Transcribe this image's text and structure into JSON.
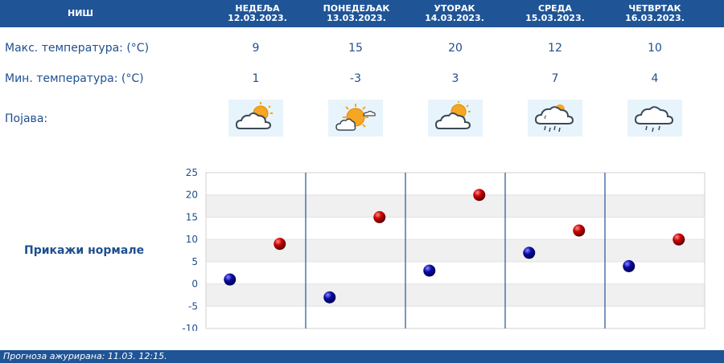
{
  "header": {
    "city": "НИШ",
    "days": [
      {
        "day": "НЕДЕЉА",
        "date": "12.03.2023."
      },
      {
        "day": "ПОНЕДЕЉАК",
        "date": "13.03.2023."
      },
      {
        "day": "УТОРАК",
        "date": "14.03.2023."
      },
      {
        "day": "СРЕДА",
        "date": "15.03.2023."
      },
      {
        "day": "ЧЕТВРТАК",
        "date": "16.03.2023."
      }
    ]
  },
  "rows": {
    "max_label": "Макс. температура: (°C)",
    "min_label": "Мин. температура: (°C)",
    "phenomenon_label": "Појава:",
    "max_values": [
      "9",
      "15",
      "20",
      "12",
      "10"
    ],
    "min_values": [
      "1",
      "-3",
      "3",
      "7",
      "4"
    ],
    "icons": [
      "partly-cloudy-icon",
      "sunny-with-cloud-icon",
      "partly-cloudy-icon",
      "cloud-sun-rain-icon",
      "cloud-rain-icon"
    ]
  },
  "normals_button": "Прикажи нормале",
  "footer": {
    "text": "Прогноза ажурирана:  11.03.  12:15."
  },
  "colors": {
    "header_bg": "#1f5597",
    "max_dot": "#cc0000",
    "min_dot": "#0a0aa8"
  },
  "chart_data": {
    "type": "scatter",
    "categories": [
      "12.03.2023.",
      "13.03.2023.",
      "14.03.2023.",
      "15.03.2023.",
      "16.03.2023."
    ],
    "series": [
      {
        "values": [
          1,
          -3,
          3,
          7,
          4
        ]
      },
      {
        "values": [
          9,
          15,
          20,
          12,
          10
        ]
      }
    ],
    "ylim": [
      -10,
      25
    ],
    "yticks": [
      "25",
      "20",
      "15",
      "10",
      "5",
      "0",
      "-5",
      "-10"
    ],
    "grid": "banded"
  }
}
